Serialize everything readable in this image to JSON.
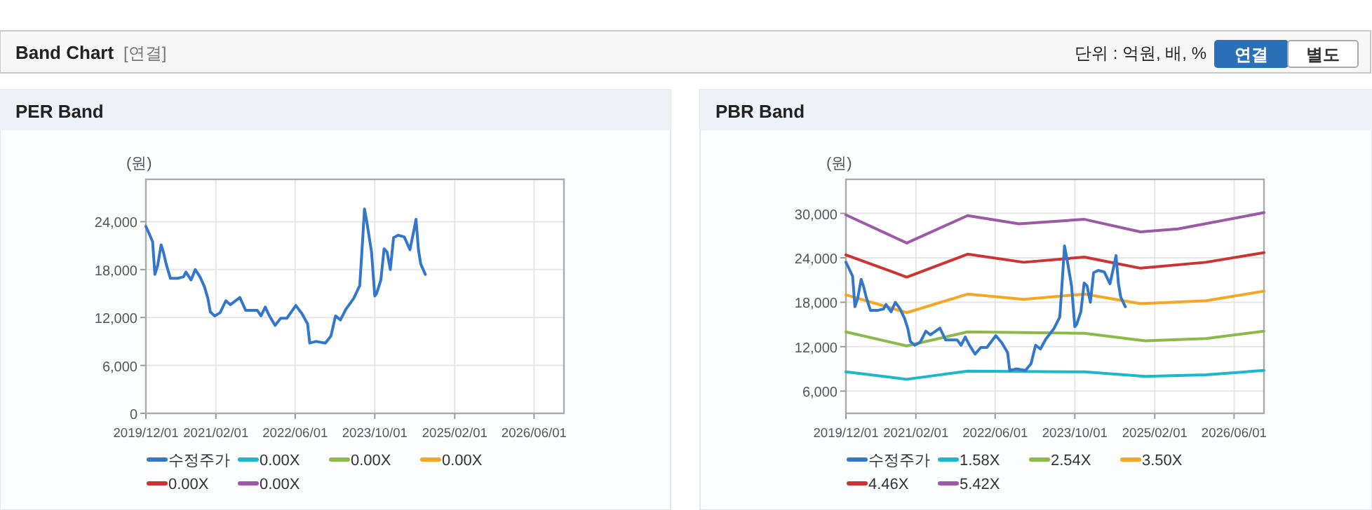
{
  "chart_data": [
    {
      "type": "other",
      "title": "Band Chart",
      "annotations": [
        "[연결]",
        "단위 : 억원, 배, %",
        "연결",
        "별도"
      ]
    },
    {
      "type": "line",
      "title": "PER Band",
      "ylabel": "(원)",
      "xlim": [
        "2019-12-01",
        "2026-12-01"
      ],
      "ylim": [
        0,
        29300
      ],
      "xticks": [
        {
          "value": "2019-12-01",
          "label": "2019/12/01"
        },
        {
          "value": "2021-02-01",
          "label": "2021/02/01"
        },
        {
          "value": "2022-06-01",
          "label": "2022/06/01"
        },
        {
          "value": "2023-10-01",
          "label": "2023/10/01"
        },
        {
          "value": "2025-02-01",
          "label": "2025/02/01"
        },
        {
          "value": "2026-06-01",
          "label": "2026/06/01"
        }
      ],
      "yticks": [
        0,
        {
          "value": 6000,
          "label": "6,000"
        },
        {
          "value": 12000,
          "label": "12,000"
        },
        {
          "value": 18000,
          "label": "18,000"
        },
        {
          "value": 24000,
          "label": "24,000"
        }
      ],
      "grid": true,
      "legend": "bottom",
      "series": [
        {
          "name": "수정주가",
          "color": "#3377cc",
          "x": [
            "2019-12-01",
            "2019-12-21",
            "2020-01-11",
            "2020-01-25",
            "2020-02-11",
            "2020-03-03",
            "2020-03-17",
            "2020-04-03",
            "2020-04-29",
            "2020-06-11",
            "2020-07-18",
            "2020-08-02",
            "2020-09-02",
            "2020-09-28",
            "2020-10-27",
            "2020-11-24",
            "2020-12-14",
            "2020-12-29",
            "2021-01-25",
            "2021-02-27",
            "2021-04-03",
            "2021-05-01",
            "2021-06-28",
            "2021-08-02",
            "2021-10-12",
            "2021-11-04",
            "2021-11-30",
            "2021-12-23",
            "2022-01-29",
            "2022-03-05",
            "2022-04-11",
            "2022-06-05",
            "2022-07-12",
            "2022-08-16",
            "2022-08-29",
            "2022-10-07",
            "2022-12-03",
            "2023-01-06",
            "2023-02-03",
            "2023-03-05",
            "2023-04-06",
            "2023-05-25",
            "2023-07-01",
            "2023-07-21",
            "2023-07-30",
            "2023-08-13",
            "2023-09-11",
            "2023-10-01",
            "2023-10-12",
            "2023-11-07",
            "2023-11-27",
            "2023-12-15",
            "2024-01-04",
            "2024-01-24",
            "2024-02-21",
            "2024-03-29",
            "2024-05-03",
            "2024-05-26",
            "2024-06-09",
            "2024-06-24",
            "2024-07-08",
            "2024-08-05"
          ],
          "values": [
            23400,
            22500,
            21500,
            17400,
            18500,
            21100,
            20200,
            18700,
            16900,
            16900,
            17100,
            17700,
            16700,
            18000,
            17100,
            15800,
            14400,
            12700,
            12200,
            12600,
            14100,
            13600,
            14500,
            12900,
            12900,
            12200,
            13300,
            12300,
            11000,
            11900,
            11900,
            13500,
            12500,
            11200,
            8800,
            9000,
            8800,
            9700,
            12200,
            11700,
            13000,
            14400,
            16000,
            22500,
            25600,
            24000,
            20200,
            14700,
            15000,
            16700,
            20600,
            20200,
            18000,
            22000,
            22300,
            22100,
            20500,
            22800,
            24300,
            20500,
            18700,
            17400
          ]
        },
        {
          "name": "0.00X",
          "color": "#1ab8c8"
        },
        {
          "name": "0.00X",
          "color": "#8cba4a"
        },
        {
          "name": "0.00X",
          "color": "#f5a623"
        },
        {
          "name": "0.00X",
          "color": "#cc3333"
        },
        {
          "name": "0.00X",
          "color": "#9b59a6"
        }
      ]
    },
    {
      "type": "line",
      "title": "PBR Band",
      "ylabel": "(원)",
      "xlim": [
        "2019-12-01",
        "2026-12-01"
      ],
      "ylim": [
        3000,
        34600
      ],
      "xticks": [
        {
          "value": "2019-12-01",
          "label": "2019/12/01"
        },
        {
          "value": "2021-02-01",
          "label": "2021/02/01"
        },
        {
          "value": "2022-06-01",
          "label": "2022/06/01"
        },
        {
          "value": "2023-10-01",
          "label": "2023/10/01"
        },
        {
          "value": "2025-02-01",
          "label": "2025/02/01"
        },
        {
          "value": "2026-06-01",
          "label": "2026/06/01"
        }
      ],
      "yticks": [
        {
          "value": 6000,
          "label": "6,000"
        },
        {
          "value": 12000,
          "label": "12,000"
        },
        {
          "value": 18000,
          "label": "18,000"
        },
        {
          "value": 24000,
          "label": "24,000"
        },
        {
          "value": 30000,
          "label": "30,000"
        }
      ],
      "grid": true,
      "legend": "bottom",
      "series": [
        {
          "name": "수정주가",
          "color": "#3377cc",
          "x": [
            "2019-12-01",
            "2019-12-21",
            "2020-01-11",
            "2020-01-25",
            "2020-02-11",
            "2020-03-03",
            "2020-03-17",
            "2020-04-03",
            "2020-04-29",
            "2020-06-11",
            "2020-07-18",
            "2020-08-02",
            "2020-09-02",
            "2020-09-28",
            "2020-10-27",
            "2020-11-24",
            "2020-12-14",
            "2020-12-29",
            "2021-01-25",
            "2021-02-27",
            "2021-04-03",
            "2021-05-01",
            "2021-06-28",
            "2021-08-02",
            "2021-10-12",
            "2021-11-04",
            "2021-11-30",
            "2021-12-23",
            "2022-01-29",
            "2022-03-05",
            "2022-04-11",
            "2022-06-05",
            "2022-07-12",
            "2022-08-16",
            "2022-08-29",
            "2022-10-07",
            "2022-12-03",
            "2023-01-06",
            "2023-02-03",
            "2023-03-05",
            "2023-04-06",
            "2023-05-25",
            "2023-07-01",
            "2023-07-21",
            "2023-07-30",
            "2023-08-13",
            "2023-09-11",
            "2023-10-01",
            "2023-10-12",
            "2023-11-07",
            "2023-11-27",
            "2023-12-15",
            "2024-01-04",
            "2024-01-24",
            "2024-02-21",
            "2024-03-29",
            "2024-05-03",
            "2024-05-26",
            "2024-06-09",
            "2024-06-24",
            "2024-07-08",
            "2024-08-05"
          ],
          "values": [
            23400,
            22500,
            21500,
            17400,
            18500,
            21100,
            20200,
            18700,
            16900,
            16900,
            17100,
            17700,
            16700,
            18000,
            17100,
            15800,
            14400,
            12700,
            12200,
            12600,
            14100,
            13600,
            14500,
            12900,
            12900,
            12200,
            13300,
            12300,
            11000,
            11900,
            11900,
            13500,
            12500,
            11200,
            8800,
            9000,
            8800,
            9700,
            12200,
            11700,
            13000,
            14400,
            16000,
            22500,
            25600,
            24000,
            20200,
            14700,
            15000,
            16700,
            20600,
            20200,
            18000,
            22000,
            22300,
            22100,
            20500,
            22800,
            24300,
            20500,
            18700,
            17400
          ]
        },
        {
          "name": "1.58X",
          "color": "#1ab8c8",
          "x": [
            "2019-12-01",
            "2020-12-07",
            "2021-12-14",
            "2023-11-29",
            "2024-12-04",
            "2025-12-11",
            "2026-12-01"
          ],
          "values": [
            8600,
            7600,
            8700,
            8600,
            8000,
            8200,
            8800
          ]
        },
        {
          "name": "2.54X",
          "color": "#8cba4a",
          "x": [
            "2019-12-01",
            "2020-12-07",
            "2021-12-14",
            "2023-11-29",
            "2024-12-04",
            "2025-12-11",
            "2026-12-01"
          ],
          "values": [
            14000,
            12100,
            14000,
            13800,
            12800,
            13100,
            14100
          ]
        },
        {
          "name": "3.50X",
          "color": "#f5a623",
          "x": [
            "2019-12-01",
            "2020-12-07",
            "2021-12-14",
            "2022-11-22",
            "2023-11-29",
            "2024-11-06",
            "2025-12-11",
            "2026-12-01"
          ],
          "values": [
            19000,
            16600,
            19100,
            18400,
            19100,
            17800,
            18200,
            19500
          ]
        },
        {
          "name": "4.46X",
          "color": "#cc3333",
          "x": [
            "2019-12-01",
            "2020-12-07",
            "2021-12-14",
            "2022-11-22",
            "2023-11-29",
            "2024-11-06",
            "2025-12-11",
            "2026-12-01"
          ],
          "values": [
            24400,
            21400,
            24500,
            23400,
            24100,
            22600,
            23400,
            24700
          ]
        },
        {
          "name": "5.42X",
          "color": "#9b59a6",
          "x": [
            "2019-12-01",
            "2020-12-07",
            "2021-12-14",
            "2022-10-24",
            "2023-11-29",
            "2024-11-06",
            "2025-06-23",
            "2026-12-01"
          ],
          "values": [
            29800,
            26000,
            29700,
            28600,
            29200,
            27500,
            27900,
            30100
          ]
        }
      ]
    }
  ]
}
